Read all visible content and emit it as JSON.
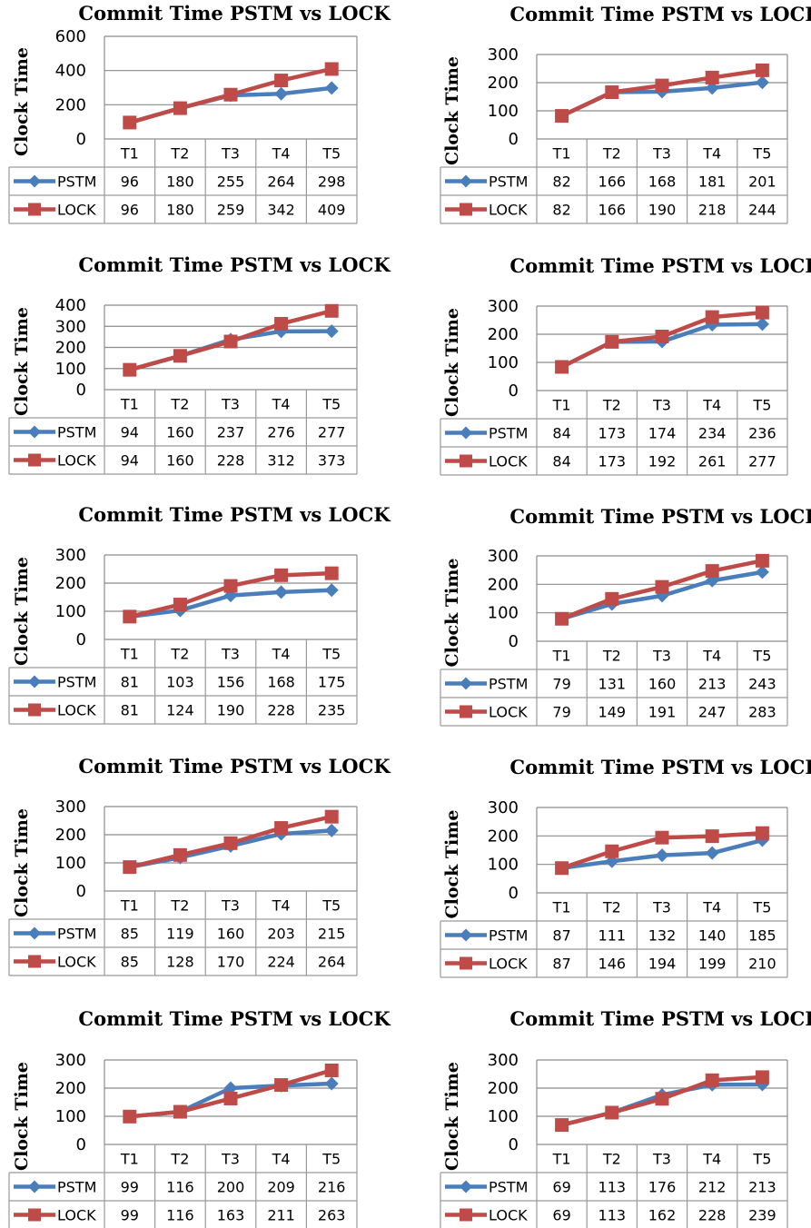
{
  "colors": {
    "pstm": "#4a7ebb",
    "lock": "#be4b48",
    "grid": "#8c8c8c",
    "table": "#9a9a9a"
  },
  "chart_data": [
    {
      "type": "line",
      "title": "Commit Time PSTM vs LOCK",
      "ylabel": "Clock Time",
      "xlabel": "",
      "categories": [
        "T1",
        "T2",
        "T3",
        "T4",
        "T5"
      ],
      "ylim": [
        0,
        600
      ],
      "yticks": [
        0,
        200,
        400,
        600
      ],
      "grid": true,
      "legend": "left-of-table",
      "series": [
        {
          "name": "PSTM",
          "values": [
            96,
            180,
            255,
            264,
            298
          ]
        },
        {
          "name": "LOCK",
          "values": [
            96,
            180,
            259,
            342,
            409
          ]
        }
      ]
    },
    {
      "type": "line",
      "title": "Commit Time PSTM vs LOCK",
      "ylabel": "Clock Time",
      "xlabel": "",
      "categories": [
        "T1",
        "T2",
        "T3",
        "T4",
        "T5"
      ],
      "ylim": [
        0,
        300
      ],
      "yticks": [
        0,
        100,
        200,
        300
      ],
      "grid": true,
      "legend": "left-of-table",
      "series": [
        {
          "name": "PSTM",
          "values": [
            82,
            166,
            168,
            181,
            201
          ]
        },
        {
          "name": "LOCK",
          "values": [
            82,
            166,
            190,
            218,
            244
          ]
        }
      ]
    },
    {
      "type": "line",
      "title": "Commit Time PSTM vs LOCK",
      "ylabel": "Clock Time",
      "xlabel": "",
      "categories": [
        "T1",
        "T2",
        "T3",
        "T4",
        "T5"
      ],
      "ylim": [
        0,
        400
      ],
      "yticks": [
        0,
        100,
        200,
        300,
        400
      ],
      "grid": true,
      "legend": "left-of-table",
      "series": [
        {
          "name": "PSTM",
          "values": [
            94,
            160,
            237,
            276,
            277
          ]
        },
        {
          "name": "LOCK",
          "values": [
            94,
            160,
            228,
            312,
            373
          ]
        }
      ]
    },
    {
      "type": "line",
      "title": "Commit Time PSTM vs LOCK",
      "ylabel": "Clock Time",
      "xlabel": "",
      "categories": [
        "T1",
        "T2",
        "T3",
        "T4",
        "T5"
      ],
      "ylim": [
        0,
        300
      ],
      "yticks": [
        0,
        100,
        200,
        300
      ],
      "grid": true,
      "legend": "left-of-table",
      "series": [
        {
          "name": "PSTM",
          "values": [
            84,
            173,
            174,
            234,
            236
          ]
        },
        {
          "name": "LOCK",
          "values": [
            84,
            173,
            192,
            261,
            277
          ]
        }
      ]
    },
    {
      "type": "line",
      "title": "Commit Time PSTM vs LOCK",
      "ylabel": "Clock Time",
      "xlabel": "",
      "categories": [
        "T1",
        "T2",
        "T3",
        "T4",
        "T5"
      ],
      "ylim": [
        0,
        300
      ],
      "yticks": [
        0,
        100,
        200,
        300
      ],
      "grid": true,
      "legend": "left-of-table",
      "series": [
        {
          "name": "PSTM",
          "values": [
            81,
            103,
            156,
            168,
            175
          ]
        },
        {
          "name": "LOCK",
          "values": [
            81,
            124,
            190,
            228,
            235
          ]
        }
      ]
    },
    {
      "type": "line",
      "title": "Commit Time PSTM vs LOCK",
      "ylabel": "Clock Time",
      "xlabel": "",
      "categories": [
        "T1",
        "T2",
        "T3",
        "T4",
        "T5"
      ],
      "ylim": [
        0,
        300
      ],
      "yticks": [
        0,
        100,
        200,
        300
      ],
      "grid": true,
      "legend": "left-of-table",
      "series": [
        {
          "name": "PSTM",
          "values": [
            79,
            131,
            160,
            213,
            243
          ]
        },
        {
          "name": "LOCK",
          "values": [
            79,
            149,
            191,
            247,
            283
          ]
        }
      ]
    },
    {
      "type": "line",
      "title": "Commit Time PSTM vs LOCK",
      "ylabel": "Clock Time",
      "xlabel": "",
      "categories": [
        "T1",
        "T2",
        "T3",
        "T4",
        "T5"
      ],
      "ylim": [
        0,
        300
      ],
      "yticks": [
        0,
        100,
        200,
        300
      ],
      "grid": true,
      "legend": "left-of-table",
      "series": [
        {
          "name": "PSTM",
          "values": [
            85,
            119,
            160,
            203,
            215
          ]
        },
        {
          "name": "LOCK",
          "values": [
            85,
            128,
            170,
            224,
            264
          ]
        }
      ]
    },
    {
      "type": "line",
      "title": "Commit Time PSTM vs LOCK",
      "ylabel": "Clock Time",
      "xlabel": "",
      "categories": [
        "T1",
        "T2",
        "T3",
        "T4",
        "T5"
      ],
      "ylim": [
        0,
        300
      ],
      "yticks": [
        0,
        100,
        200,
        300
      ],
      "grid": true,
      "legend": "left-of-table",
      "series": [
        {
          "name": "PSTM",
          "values": [
            87,
            111,
            132,
            140,
            185
          ]
        },
        {
          "name": "LOCK",
          "values": [
            87,
            146,
            194,
            199,
            210
          ]
        }
      ]
    },
    {
      "type": "line",
      "title": "Commit Time PSTM vs LOCK",
      "ylabel": "Clock Time",
      "xlabel": "",
      "categories": [
        "T1",
        "T2",
        "T3",
        "T4",
        "T5"
      ],
      "ylim": [
        0,
        300
      ],
      "yticks": [
        0,
        100,
        200,
        300
      ],
      "grid": true,
      "legend": "left-of-table",
      "series": [
        {
          "name": "PSTM",
          "values": [
            99,
            116,
            200,
            209,
            216
          ]
        },
        {
          "name": "LOCK",
          "values": [
            99,
            116,
            163,
            211,
            263
          ]
        }
      ]
    },
    {
      "type": "line",
      "title": "Commit Time PSTM vs LOCK",
      "ylabel": "Clock Time",
      "xlabel": "",
      "categories": [
        "T1",
        "T2",
        "T3",
        "T4",
        "T5"
      ],
      "ylim": [
        0,
        300
      ],
      "yticks": [
        0,
        100,
        200,
        300
      ],
      "grid": true,
      "legend": "left-of-table",
      "series": [
        {
          "name": "PSTM",
          "values": [
            69,
            113,
            176,
            212,
            213
          ]
        },
        {
          "name": "LOCK",
          "values": [
            69,
            113,
            162,
            228,
            239
          ]
        }
      ]
    }
  ]
}
